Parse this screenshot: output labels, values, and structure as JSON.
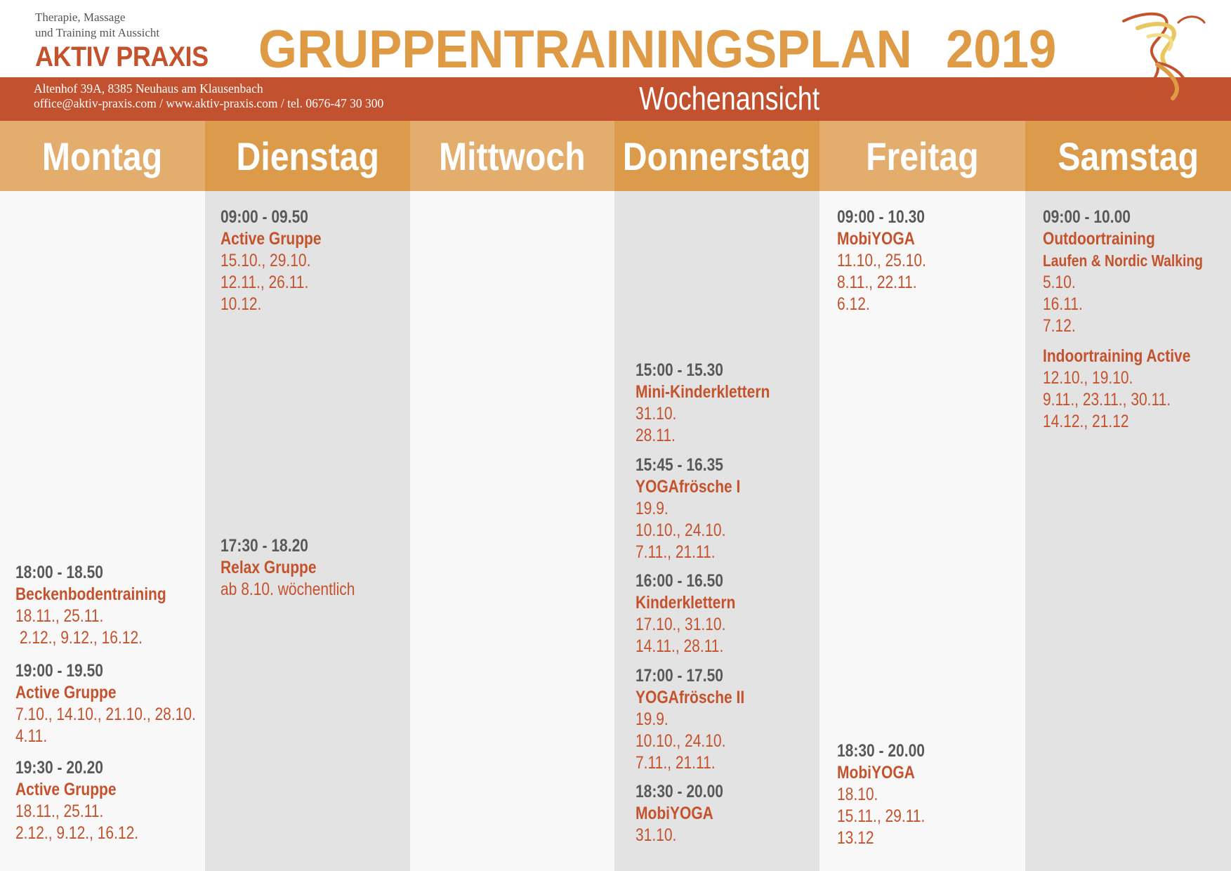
{
  "header": {
    "tagline_1": "Therapie, Massage",
    "tagline_2": "und Training mit Aussicht",
    "brand_name": "AKTIV PRAXIS",
    "title": "GRUPPENTRAININGSPLAN",
    "year": "2019",
    "address": "Altenhof 39A, 8385 Neuhaus am Klausenbach",
    "contact": "office@aktiv-praxis.com / www.aktiv-praxis.com / tel. 0676-47 30 300",
    "view_label": "Wochenansicht"
  },
  "colors": {
    "brand_red": "#c4522d",
    "band": "#c2512f",
    "title_orange": "#df9a45",
    "day_light": "#e2ad6d",
    "day_dark": "#dc9b4b",
    "time_gray": "#58595b",
    "column_gray": "#e3e3e3",
    "column_light": "#f8f8f8"
  },
  "days": [
    {
      "name": "Montag",
      "entries": [
        {
          "time": "18:00 - 18.50",
          "title": "Beckenbodentraining",
          "dates": [
            "18.11., 25.11.",
            " 2.12., 9.12., 16.12."
          ]
        },
        {
          "time": "19:00 - 19.50",
          "title": "Active Gruppe",
          "dates": [
            "7.10., 14.10., 21.10., 28.10.",
            "4.11."
          ]
        },
        {
          "time": "19:30 - 20.20",
          "title": "Active Gruppe",
          "dates": [
            "18.11., 25.11.",
            "2.12., 9.12., 16.12."
          ]
        }
      ]
    },
    {
      "name": "Dienstag",
      "entries": [
        {
          "time": "09:00 - 09.50",
          "title": "Active Gruppe",
          "dates": [
            "15.10., 29.10.",
            "12.11., 26.11.",
            "10.12."
          ]
        },
        {
          "time": "17:30 - 18.20",
          "title": "Relax Gruppe",
          "dates": [
            "ab 8.10. wöchentlich"
          ]
        }
      ]
    },
    {
      "name": "Mittwoch",
      "entries": []
    },
    {
      "name": "Donnerstag",
      "entries": [
        {
          "time": "15:00 - 15.30",
          "title": "Mini-Kinderklettern",
          "dates": [
            "31.10.",
            "28.11."
          ]
        },
        {
          "time": "15:45 - 16.35",
          "title": "YOGAfrösche I",
          "dates": [
            "19.9.",
            "10.10., 24.10.",
            "7.11., 21.11."
          ]
        },
        {
          "time": "16:00 - 16.50",
          "title": "Kinderklettern",
          "dates": [
            "17.10., 31.10.",
            "14.11., 28.11."
          ]
        },
        {
          "time": "17:00 - 17.50",
          "title": "YOGAfrösche II",
          "dates": [
            "19.9.",
            "10.10., 24.10.",
            "7.11., 21.11."
          ]
        },
        {
          "time": "18:30 - 20.00",
          "title": "MobiYOGA",
          "dates": [
            "31.10."
          ]
        }
      ]
    },
    {
      "name": "Freitag",
      "entries": [
        {
          "time": "09:00 - 10.30",
          "title": "MobiYOGA",
          "dates": [
            "11.10., 25.10.",
            "8.11., 22.11.",
            "6.12."
          ]
        },
        {
          "time": "18:30 - 20.00",
          "title": "MobiYOGA",
          "dates": [
            "18.10.",
            "15.11., 29.11.",
            "13.12"
          ]
        }
      ]
    },
    {
      "name": "Samstag",
      "entries": [
        {
          "time": "09:00 - 10.00",
          "title": "Outdoortraining",
          "subtitle": "Laufen & Nordic Walking",
          "dates": [
            "5.10.",
            "16.11.",
            "7.12."
          ]
        },
        {
          "title": "Indoortraining Active",
          "dates": [
            "12.10., 19.10.",
            "9.11., 23.11., 30.11.",
            "14.12., 21.12"
          ]
        }
      ]
    }
  ]
}
